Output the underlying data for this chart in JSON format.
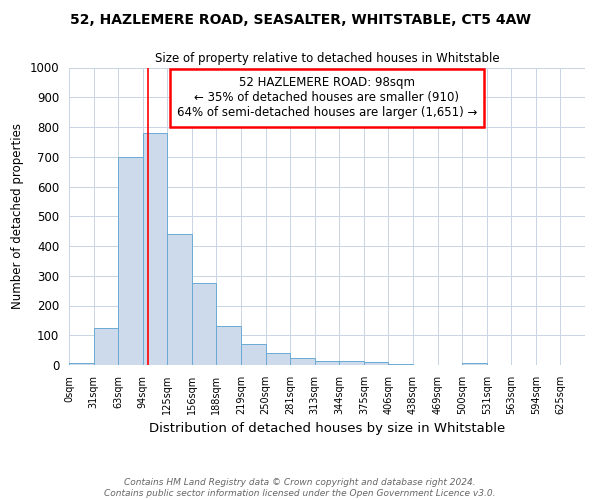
{
  "title1": "52, HAZLEMERE ROAD, SEASALTER, WHITSTABLE, CT5 4AW",
  "title2": "Size of property relative to detached houses in Whitstable",
  "xlabel": "Distribution of detached houses by size in Whitstable",
  "ylabel": "Number of detached properties",
  "bin_labels": [
    "0sqm",
    "31sqm",
    "63sqm",
    "94sqm",
    "125sqm",
    "156sqm",
    "188sqm",
    "219sqm",
    "250sqm",
    "281sqm",
    "313sqm",
    "344sqm",
    "375sqm",
    "406sqm",
    "438sqm",
    "469sqm",
    "500sqm",
    "531sqm",
    "563sqm",
    "594sqm",
    "625sqm"
  ],
  "bar_heights": [
    8,
    125,
    700,
    780,
    440,
    275,
    130,
    70,
    40,
    25,
    13,
    13,
    10,
    5,
    0,
    0,
    8,
    0,
    0,
    0,
    0
  ],
  "bar_color": "#ccdaec",
  "bar_edgecolor": "#6aaad4",
  "red_line_x": 3.22,
  "annotation_text": "52 HAZLEMERE ROAD: 98sqm\n← 35% of detached houses are smaller (910)\n64% of semi-detached houses are larger (1,651) →",
  "annotation_box_color": "white",
  "annotation_box_edgecolor": "red",
  "grid_color": "#c8d4e3",
  "footnote": "Contains HM Land Registry data © Crown copyright and database right 2024.\nContains public sector information licensed under the Open Government Licence v3.0.",
  "ylim": [
    0,
    1000
  ],
  "yticks": [
    0,
    100,
    200,
    300,
    400,
    500,
    600,
    700,
    800,
    900,
    1000
  ]
}
